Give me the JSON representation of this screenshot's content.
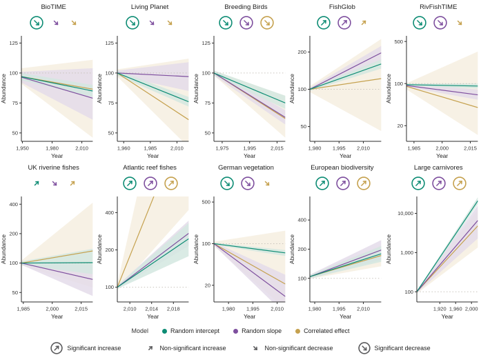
{
  "colors": {
    "teal": "#0d8c74",
    "purple": "#7e4f9e",
    "gold": "#c5a14e",
    "teal_fill": "#d3e8e1",
    "purple_fill": "#e4dcea",
    "gold_fill": "#f6efe1",
    "legend_gray": "#5a5a5c",
    "axis": "#2b2b2b",
    "ref_dotted": "#c8c3bc"
  },
  "model_legend": {
    "label": "Model",
    "items": [
      {
        "name": "Random intercept",
        "color": "teal"
      },
      {
        "name": "Random slope",
        "color": "purple"
      },
      {
        "name": "Correlated effect",
        "color": "gold"
      }
    ]
  },
  "significance_legend": [
    {
      "label": "Significant increase",
      "dir": "up",
      "circled": true
    },
    {
      "label": "Non-significant increase",
      "dir": "up",
      "circled": false
    },
    {
      "label": "Non-significant decrease",
      "dir": "down",
      "circled": false
    },
    {
      "label": "Significant decrease",
      "dir": "down",
      "circled": true
    }
  ],
  "chart_data": [
    {
      "type": "line",
      "title": "BioTIME",
      "slug": "biotime",
      "xlabel": "Year",
      "ylabel": "Abundance",
      "scale": "linear",
      "xlim": [
        1949,
        2021
      ],
      "xticks": [
        1950,
        1980,
        2010
      ],
      "ylim": [
        43,
        131
      ],
      "yticks": [
        50,
        75,
        100,
        125
      ],
      "ref_line": 100,
      "arrows": [
        {
          "color": "teal",
          "dir": "down",
          "circled": true
        },
        {
          "color": "purple",
          "dir": "down",
          "circled": false
        },
        {
          "color": "gold",
          "dir": "down",
          "circled": false
        }
      ],
      "series": [
        {
          "name": "Correlated effect",
          "color": "gold",
          "y": [
            97,
            86.5
          ],
          "ribbon": {
            "start": [
              91,
              104
            ],
            "end": [
              46,
              111
            ]
          }
        },
        {
          "name": "Random slope",
          "color": "purple",
          "y": [
            96.5,
            79
          ],
          "ribbon": {
            "start": [
              92,
              101
            ],
            "end": [
              61,
              104
            ]
          }
        },
        {
          "name": "Random intercept",
          "color": "teal",
          "y": [
            97,
            85
          ],
          "ribbon": {
            "start": [
              94,
              100
            ],
            "end": [
              80,
              90
            ]
          }
        }
      ]
    },
    {
      "type": "line",
      "title": "Living Planet",
      "slug": "living-planet",
      "xlabel": "Year",
      "ylabel": "Abundance",
      "scale": "linear",
      "xlim": [
        1954,
        2021
      ],
      "xticks": [
        1960,
        1985,
        2010
      ],
      "ylim": [
        43,
        131
      ],
      "yticks": [
        50,
        75,
        100,
        125
      ],
      "ref_line": 100,
      "arrows": [
        {
          "color": "teal",
          "dir": "down",
          "circled": true
        },
        {
          "color": "purple",
          "dir": "down",
          "circled": false
        },
        {
          "color": "gold",
          "dir": "down",
          "circled": false
        }
      ],
      "series": [
        {
          "name": "Correlated effect",
          "color": "gold",
          "y": [
            100,
            61
          ],
          "ribbon": {
            "start": [
              97,
              103
            ],
            "end": [
              38,
              112
            ]
          }
        },
        {
          "name": "Random slope",
          "color": "purple",
          "y": [
            100,
            97
          ],
          "ribbon": {
            "start": [
              98,
              102
            ],
            "end": [
              85,
              109
            ]
          }
        },
        {
          "name": "Random intercept",
          "color": "teal",
          "y": [
            100,
            76
          ],
          "ribbon": {
            "start": [
              98,
              102
            ],
            "end": [
              72,
              80
            ]
          }
        }
      ]
    },
    {
      "type": "line",
      "title": "Breeding Birds",
      "slug": "breeding-birds",
      "xlabel": "Year",
      "ylabel": "Abundance",
      "scale": "linear",
      "xlim": [
        1969,
        2021
      ],
      "xticks": [
        1975,
        1995,
        2015
      ],
      "ylim": [
        43,
        131
      ],
      "yticks": [
        50,
        75,
        100,
        125
      ],
      "ref_line": 100,
      "arrows": [
        {
          "color": "teal",
          "dir": "down",
          "circled": true
        },
        {
          "color": "purple",
          "dir": "down",
          "circled": true
        },
        {
          "color": "gold",
          "dir": "down",
          "circled": true
        }
      ],
      "series": [
        {
          "name": "Correlated effect",
          "color": "gold",
          "y": [
            100,
            62
          ],
          "ribbon": {
            "start": [
              98,
              102
            ],
            "end": [
              46,
              81
            ]
          }
        },
        {
          "name": "Random slope",
          "color": "purple",
          "y": [
            100,
            63
          ],
          "ribbon": {
            "start": [
              98,
              102
            ],
            "end": [
              57,
              69
            ]
          }
        },
        {
          "name": "Random intercept",
          "color": "teal",
          "y": [
            100,
            75
          ],
          "ribbon": {
            "start": [
              98,
              102
            ],
            "end": [
              70,
              81
            ]
          }
        }
      ]
    },
    {
      "type": "line",
      "title": "FishGlob",
      "slug": "fishglob",
      "xlabel": "Year",
      "ylabel": "Abundance",
      "scale": "log",
      "xlim": [
        1977,
        2021
      ],
      "xticks": [
        1980,
        1995,
        2010
      ],
      "ylim": [
        38,
        270
      ],
      "yticks": [
        50,
        100,
        200
      ],
      "ref_line": 100,
      "arrows": [
        {
          "color": "teal",
          "dir": "up",
          "circled": true
        },
        {
          "color": "purple",
          "dir": "up",
          "circled": true
        },
        {
          "color": "gold",
          "dir": "up",
          "circled": false
        }
      ],
      "series": [
        {
          "name": "Correlated effect",
          "color": "gold",
          "y": [
            100,
            122
          ],
          "ribbon": {
            "start": [
              95,
              106
            ],
            "end": [
              46,
              255
            ]
          }
        },
        {
          "name": "Random slope",
          "color": "purple",
          "y": [
            100,
            197
          ],
          "ribbon": {
            "start": [
              97,
              103
            ],
            "end": [
              172,
              224
            ]
          }
        },
        {
          "name": "Random intercept",
          "color": "teal",
          "y": [
            100,
            160
          ],
          "ribbon": {
            "start": [
              97,
              103
            ],
            "end": [
              147,
              174
            ]
          }
        }
      ]
    },
    {
      "type": "line",
      "title": "RivFishTIME",
      "slug": "rivfishtime",
      "xlabel": "Year",
      "ylabel": "Abundance",
      "scale": "log",
      "xlim": [
        1981,
        2019
      ],
      "xticks": [
        1985,
        2000,
        2015
      ],
      "ylim": [
        11,
        620
      ],
      "yticks": [
        20,
        100,
        500
      ],
      "ref_line": 100,
      "arrows": [
        {
          "color": "teal",
          "dir": "down",
          "circled": true
        },
        {
          "color": "purple",
          "dir": "down",
          "circled": true
        },
        {
          "color": "gold",
          "dir": "down",
          "circled": false
        }
      ],
      "series": [
        {
          "name": "Correlated effect",
          "color": "gold",
          "y": [
            90,
            40
          ],
          "ribbon": {
            "start": [
              80,
              101
            ],
            "end": [
              14,
              340
            ]
          }
        },
        {
          "name": "Random slope",
          "color": "purple",
          "y": [
            93,
            65
          ],
          "ribbon": {
            "start": [
              88,
              99
            ],
            "end": [
              54,
              80
            ]
          }
        },
        {
          "name": "Random intercept",
          "color": "teal",
          "y": [
            96,
            91
          ],
          "ribbon": {
            "start": [
              92,
              100
            ],
            "end": [
              83,
              100
            ]
          }
        }
      ]
    },
    {
      "type": "line",
      "title": "UK riverine fishes",
      "slug": "uk-riverine-fishes",
      "xlabel": "Year",
      "ylabel": "Abundance",
      "scale": "log",
      "xlim": [
        1984,
        2021
      ],
      "xticks": [
        1985,
        2000,
        2015
      ],
      "ylim": [
        40,
        480
      ],
      "yticks": [
        50,
        100,
        200,
        400
      ],
      "ref_line": 100,
      "arrows": [
        {
          "color": "teal",
          "dir": "up",
          "circled": false
        },
        {
          "color": "purple",
          "dir": "down",
          "circled": false
        },
        {
          "color": "gold",
          "dir": "up",
          "circled": false
        }
      ],
      "series": [
        {
          "name": "Correlated effect",
          "color": "gold",
          "y": [
            100,
            133
          ],
          "ribbon": {
            "start": [
              95,
              106
            ],
            "end": [
              56,
              415
            ]
          }
        },
        {
          "name": "Random slope",
          "color": "purple",
          "y": [
            100,
            68
          ],
          "ribbon": {
            "start": [
              96,
              104
            ],
            "end": [
              46,
              96
            ]
          }
        },
        {
          "name": "Random intercept",
          "color": "teal",
          "y": [
            100,
            101
          ],
          "ribbon": {
            "start": [
              96,
              104
            ],
            "end": [
              77,
              140
            ]
          }
        }
      ]
    },
    {
      "type": "line",
      "title": "Atlantic reef fishes",
      "slug": "atlantic-reef-fishes",
      "xlabel": "Year",
      "ylabel": "Abundance",
      "scale": "log",
      "xlim": [
        2007.7,
        2020.8
      ],
      "xticks": [
        2010,
        2014,
        2018
      ],
      "ylim": [
        76,
        540
      ],
      "yticks": [
        100,
        200,
        400
      ],
      "ref_line": 100,
      "arrows": [
        {
          "color": "teal",
          "dir": "up",
          "circled": true
        },
        {
          "color": "purple",
          "dir": "up",
          "circled": true
        },
        {
          "color": "gold",
          "dir": "up",
          "circled": true
        }
      ],
      "series": [
        {
          "name": "Correlated effect",
          "color": "gold",
          "y": [
            100,
            2700
          ],
          "ribbon": {
            "start": [
              95,
              106
            ],
            "end": [
              420,
              40000
            ]
          }
        },
        {
          "name": "Random slope",
          "color": "purple",
          "y": [
            100,
            272
          ],
          "ribbon": {
            "start": [
              97,
              103
            ],
            "end": [
              215,
              345
            ]
          }
        },
        {
          "name": "Random intercept",
          "color": "teal",
          "y": [
            100,
            246
          ],
          "ribbon": {
            "start": [
              97,
              103
            ],
            "end": [
              178,
              330
            ]
          }
        }
      ]
    },
    {
      "type": "line",
      "title": "German vegetation",
      "slug": "german-vegetation",
      "xlabel": "Year",
      "ylabel": "Abundance",
      "scale": "log",
      "xlim": [
        1971,
        2015
      ],
      "xticks": [
        1980,
        1995,
        2010
      ],
      "ylim": [
        10.5,
        620
      ],
      "yticks": [
        20,
        100,
        500
      ],
      "ref_line": 100,
      "arrows": [
        {
          "color": "teal",
          "dir": "down",
          "circled": true
        },
        {
          "color": "purple",
          "dir": "down",
          "circled": true
        },
        {
          "color": "gold",
          "dir": "down",
          "circled": false
        }
      ],
      "series": [
        {
          "name": "Correlated effect",
          "color": "gold",
          "y": [
            100,
            21
          ],
          "ribbon": {
            "start": [
              92,
              108
            ],
            "end": [
              8,
              165
            ]
          }
        },
        {
          "name": "Random slope",
          "color": "purple",
          "y": [
            100,
            13
          ],
          "ribbon": {
            "start": [
              94,
              106
            ],
            "end": [
              6.5,
              30
            ]
          }
        },
        {
          "name": "Random intercept",
          "color": "teal",
          "y": [
            100,
            70
          ],
          "ribbon": {
            "start": [
              96,
              104
            ],
            "end": [
              62,
              78
            ]
          }
        }
      ]
    },
    {
      "type": "line",
      "title": "European biodiversity",
      "slug": "european-biodiversity",
      "xlabel": "Year",
      "ylabel": "Abundance",
      "scale": "log",
      "xlim": [
        1977,
        2021
      ],
      "xticks": [
        1980,
        1995,
        2010
      ],
      "ylim": [
        57,
        700
      ],
      "yticks": [
        100,
        200,
        400
      ],
      "ref_line": 100,
      "arrows": [
        {
          "color": "teal",
          "dir": "up",
          "circled": true
        },
        {
          "color": "purple",
          "dir": "up",
          "circled": true
        },
        {
          "color": "gold",
          "dir": "up",
          "circled": true
        }
      ],
      "series": [
        {
          "name": "Correlated effect",
          "color": "gold",
          "y": [
            104,
            172
          ],
          "ribbon": {
            "start": [
              99,
              109
            ],
            "end": [
              133,
              218
            ]
          }
        },
        {
          "name": "Random slope",
          "color": "purple",
          "y": [
            104,
            196
          ],
          "ribbon": {
            "start": [
              99,
              109
            ],
            "end": [
              155,
              248
            ]
          }
        },
        {
          "name": "Random intercept",
          "color": "teal",
          "y": [
            104,
            179
          ],
          "ribbon": {
            "start": [
              100,
              108
            ],
            "end": [
              148,
              215
            ]
          }
        }
      ]
    },
    {
      "type": "line",
      "title": "Large carnivores",
      "slug": "large-carnivores",
      "xlabel": "Year",
      "ylabel": "Abundance",
      "scale": "log",
      "xlim": [
        1862,
        2016
      ],
      "xticks": [
        1920,
        1960,
        2000
      ],
      "ylim": [
        55,
        27000
      ],
      "yticks": [
        100,
        1000,
        10000
      ],
      "ref_line": 100,
      "arrows": [
        {
          "color": "teal",
          "dir": "up",
          "circled": true
        },
        {
          "color": "purple",
          "dir": "up",
          "circled": true
        },
        {
          "color": "gold",
          "dir": "up",
          "circled": true
        }
      ],
      "series": [
        {
          "name": "Correlated effect",
          "color": "gold",
          "y": [
            100,
            4800
          ],
          "ribbon": {
            "start": [
              90,
              111
            ],
            "end": [
              1350,
              12500
            ]
          }
        },
        {
          "name": "Random slope",
          "color": "purple",
          "y": [
            100,
            6600
          ],
          "ribbon": {
            "start": [
              92,
              109
            ],
            "end": [
              2300,
              16000
            ]
          }
        },
        {
          "name": "Random intercept",
          "color": "teal",
          "y": [
            100,
            21000
          ],
          "ribbon": {
            "start": [
              95,
              105
            ],
            "end": [
              17000,
              26000
            ]
          }
        }
      ]
    }
  ]
}
